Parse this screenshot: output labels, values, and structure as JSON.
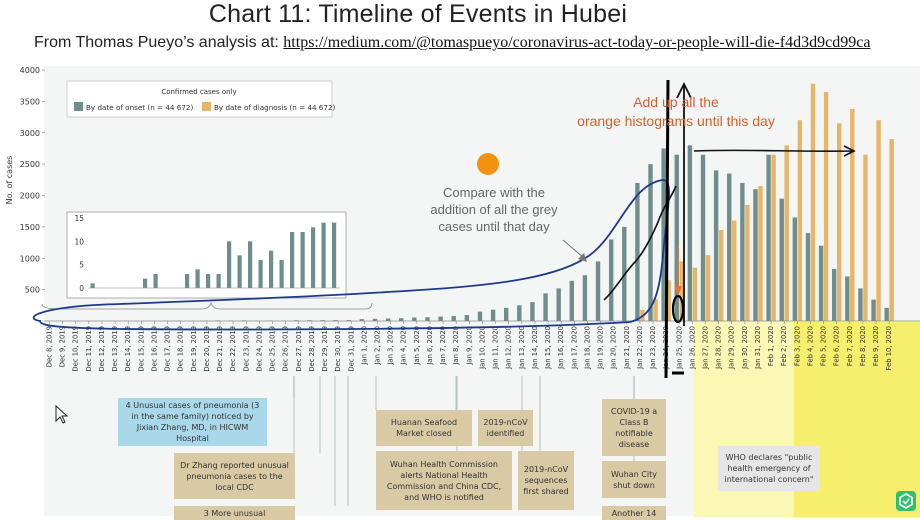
{
  "header": {
    "title": "Chart 11: Timeline of Events in Hubei",
    "subtitle_prefix": "From Thomas Pueyo’s analysis at:",
    "subtitle_link": "https://medium.com/@tomaspueyo/coronavirus-act-today-or-people-will-die-f4d3d9cd99ca"
  },
  "chart_data": {
    "type": "bar",
    "ylabel": "No. of cases",
    "ylim": [
      0,
      4000
    ],
    "yticks": [
      0,
      500,
      1000,
      1500,
      2000,
      2500,
      3000,
      3500,
      4000
    ],
    "legend": {
      "title": "Confirmed cases only",
      "placement": "top-left",
      "entries": [
        "By date of onset (n = 44 672)",
        "By date of diagnosis (n = 44 672)"
      ]
    },
    "colors": {
      "onset": "#6f8d8c",
      "diagnosis": "#e7b567",
      "background": "#f4f6f6"
    },
    "categories": [
      "Dec 8, 2019",
      "Dec 9, 2019",
      "Dec 10, 2019",
      "Dec 11, 2019",
      "Dec 12, 2019",
      "Dec 13, 2019",
      "Dec 14, 2019",
      "Dec 15, 2019",
      "Dec 16, 2019",
      "Dec 17, 2019",
      "Dec 18, 2019",
      "Dec 19, 2019",
      "Dec 20, 2019",
      "Dec 21, 2019",
      "Dec 22, 2019",
      "Dec 23, 2019",
      "Dec 24, 2019",
      "Dec 25, 2019",
      "Dec 26, 2019",
      "Dec 27, 2019",
      "Dec 28, 2019",
      "Dec 29, 2019",
      "Dec 30, 2019",
      "Dec 31, 2019",
      "Jan 1, 2020",
      "Jan 2, 2020",
      "Jan 3, 2020",
      "Jan 4, 2020",
      "Jan 5, 2020",
      "Jan 6, 2020",
      "Jan 7, 2020",
      "Jan 8, 2020",
      "Jan 9, 2020",
      "Jan 10, 2020",
      "Jan 11, 2020",
      "Jan 12, 2020",
      "Jan 13, 2020",
      "Jan 14, 2020",
      "Jan 15, 2020",
      "Jan 16, 2020",
      "Jan 17, 2020",
      "Jan 18, 2020",
      "Jan 19, 2020",
      "Jan 20, 2020",
      "Jan 21, 2020",
      "Jan 22, 2020",
      "Jan 23, 2020",
      "Jan 24, 2020",
      "Jan 25, 2020",
      "Jan 26, 2020",
      "Jan 27, 2020",
      "Jan 28, 2020",
      "Jan 29, 2020",
      "Jan 30, 2020",
      "Jan 31, 2020",
      "Feb 1, 2020",
      "Feb 2, 2020",
      "Feb 3, 2020",
      "Feb 4, 2020",
      "Feb 5, 2020",
      "Feb 6, 2020",
      "Feb 7, 2020",
      "Feb 8, 2020",
      "Feb 9, 2020",
      "Feb 10, 2020"
    ],
    "series": [
      {
        "name": "By date of onset (n = 44 672)",
        "values": [
          1,
          0,
          0,
          0,
          0,
          2,
          3,
          0,
          0,
          3,
          4,
          3,
          3,
          10,
          7,
          10,
          6,
          8,
          6,
          12,
          12,
          13,
          14,
          14,
          30,
          35,
          40,
          45,
          55,
          60,
          70,
          80,
          95,
          150,
          180,
          210,
          250,
          300,
          440,
          520,
          640,
          730,
          950,
          1300,
          1500,
          2200,
          2500,
          2750,
          2650,
          2800,
          2650,
          2400,
          2350,
          2200,
          2100,
          2650,
          1950,
          1650,
          1400,
          1200,
          830,
          710,
          520,
          340,
          210
        ]
      },
      {
        "name": "By date of diagnosis (n = 44 672)",
        "values": [
          0,
          0,
          0,
          0,
          0,
          0,
          0,
          0,
          0,
          0,
          0,
          0,
          0,
          0,
          0,
          0,
          0,
          0,
          0,
          0,
          0,
          0,
          0,
          0,
          0,
          0,
          0,
          0,
          0,
          0,
          0,
          0,
          0,
          0,
          0,
          0,
          0,
          0,
          0,
          0,
          0,
          0,
          0,
          0,
          0,
          180,
          350,
          650,
          950,
          850,
          1050,
          1450,
          1600,
          1850,
          2150,
          2650,
          2800,
          3200,
          3780,
          3650,
          3150,
          3380,
          2650,
          3200,
          2900
        ]
      }
    ],
    "inset": {
      "ylim": [
        0,
        15
      ],
      "yticks": [
        0,
        5,
        10,
        15
      ],
      "values": [
        1,
        0,
        0,
        0,
        0,
        2,
        3,
        0,
        0,
        3,
        4,
        3,
        3,
        10,
        7,
        10,
        6,
        8,
        6,
        12,
        12,
        13,
        14,
        14
      ]
    }
  },
  "annotations": {
    "orange_note": "Add up all the orange histograms until this day",
    "grey_note": "Compare with the addition of all the grey cases until that day"
  },
  "events": {
    "pneumonia_cases": "4 Unusual cases of pneumonia (3 in the same family) noticed by Jixian Zhang, MD, in HICWM Hospital",
    "zhang_reported": "Dr Zhang reported unusual pneumonia cases to the local CDC",
    "partial_box": "3 More unusual",
    "market_closed": "Huanan Seafood Market closed",
    "ncov_identified": "2019-nCoV identified",
    "health_commission": "Wuhan Health Commission alerts National Health Commission and China CDC, and WHO is notified",
    "sequences_shared": "2019-nCoV sequences first shared",
    "class_b": "COVID-19 a Class B notifiable disease",
    "wuhan_shutdown": "Wuhan City shut down",
    "partial_bottom": "Another 14",
    "who_declares": "WHO declares \"public health emergency of international concern\""
  }
}
